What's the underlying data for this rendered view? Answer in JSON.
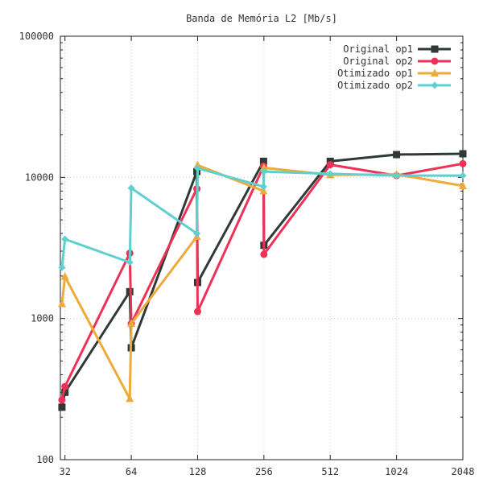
{
  "chart_data": {
    "type": "line",
    "title": "Banda de Memória L2 [Mb/s]",
    "xlabel": "",
    "ylabel": "",
    "x_scale": "log2",
    "y_scale": "log10",
    "xlim": [
      30.5,
      2048
    ],
    "ylim": [
      100,
      100000
    ],
    "x_ticks": [
      "32",
      "64",
      "128",
      "256",
      "512",
      "1024",
      "2048"
    ],
    "y_ticks": [
      "100",
      "1000",
      "10000",
      "100000"
    ],
    "grid": true,
    "legend_position": "top-right",
    "series": [
      {
        "name": "Original op1",
        "color": "#2f3a36",
        "marker": "square",
        "points": [
          [
            31,
            235
          ],
          [
            32,
            300
          ],
          [
            63,
            1550
          ],
          [
            64,
            620
          ],
          [
            127,
            11000
          ],
          [
            128,
            1800
          ],
          [
            255,
            13000
          ],
          [
            256,
            3300
          ],
          [
            512,
            13000
          ],
          [
            1024,
            14500
          ],
          [
            2048,
            14700
          ]
        ]
      },
      {
        "name": "Original op2",
        "color": "#ee3157",
        "marker": "circle",
        "points": [
          [
            31,
            265
          ],
          [
            32,
            330
          ],
          [
            63,
            2900
          ],
          [
            64,
            920
          ],
          [
            127,
            8300
          ],
          [
            128,
            1120
          ],
          [
            255,
            12000
          ],
          [
            256,
            2850
          ],
          [
            512,
            12300
          ],
          [
            1024,
            10300
          ],
          [
            2048,
            12500
          ]
        ]
      },
      {
        "name": "Otimizado op1",
        "color": "#eeaa3a",
        "marker": "triangle",
        "points": [
          [
            31,
            1270
          ],
          [
            32,
            1980
          ],
          [
            63,
            270
          ],
          [
            64,
            920
          ],
          [
            127,
            3800
          ],
          [
            128,
            12200
          ],
          [
            255,
            8000
          ],
          [
            256,
            11700
          ],
          [
            512,
            10400
          ],
          [
            1024,
            10500
          ],
          [
            2048,
            8700
          ]
        ]
      },
      {
        "name": "Otimizado op2",
        "color": "#5fcfcf",
        "marker": "diamond",
        "points": [
          [
            31,
            2300
          ],
          [
            32,
            3650
          ],
          [
            63,
            2500
          ],
          [
            64,
            8400
          ],
          [
            127,
            4000
          ],
          [
            128,
            11600
          ],
          [
            255,
            8600
          ],
          [
            256,
            11000
          ],
          [
            512,
            10600
          ],
          [
            1024,
            10300
          ],
          [
            2048,
            10300
          ]
        ]
      }
    ]
  }
}
